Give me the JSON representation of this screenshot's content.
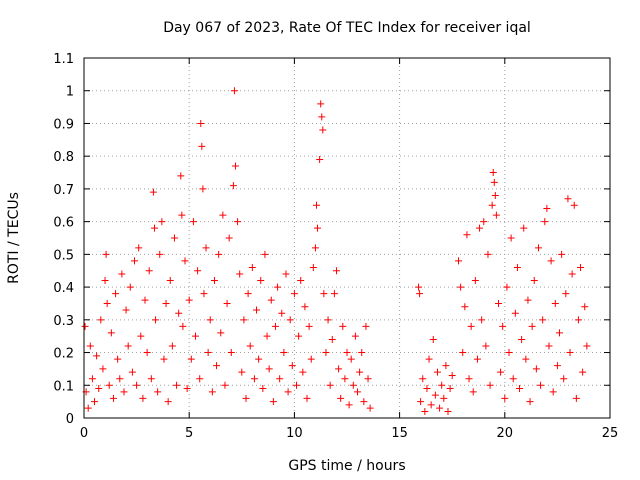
{
  "chart_data": {
    "type": "scatter",
    "title": "Day 067 of 2023, Rate Of TEC Index for receiver iqal",
    "xlabel": "GPS time / hours",
    "ylabel": "ROTI / TECUs",
    "xlim": [
      0,
      25
    ],
    "ylim": [
      0,
      1.1
    ],
    "x_ticks": [
      {
        "value": 0,
        "label": "0"
      },
      {
        "value": 5,
        "label": "5"
      },
      {
        "value": 10,
        "label": "10"
      },
      {
        "value": 15,
        "label": "15"
      },
      {
        "value": 20,
        "label": "20"
      },
      {
        "value": 25,
        "label": "25"
      }
    ],
    "y_ticks": [
      {
        "value": 0,
        "label": "0"
      },
      {
        "value": 0.1,
        "label": "0.1"
      },
      {
        "value": 0.2,
        "label": "0.2"
      },
      {
        "value": 0.3,
        "label": "0.3"
      },
      {
        "value": 0.4,
        "label": "0.4"
      },
      {
        "value": 0.5,
        "label": "0.5"
      },
      {
        "value": 0.6,
        "label": "0.6"
      },
      {
        "value": 0.7,
        "label": "0.7"
      },
      {
        "value": 0.8,
        "label": "0.8"
      },
      {
        "value": 0.9,
        "label": "0.9"
      },
      {
        "value": 1,
        "label": "1"
      },
      {
        "value": 1.1,
        "label": "1.1"
      }
    ],
    "grid": true,
    "marker": "+",
    "color": "#ff0000",
    "series": [
      {
        "points": [
          [
            0.05,
            0.28
          ],
          [
            0.1,
            0.08
          ],
          [
            0.2,
            0.03
          ],
          [
            0.3,
            0.22
          ],
          [
            0.4,
            0.12
          ],
          [
            0.5,
            0.05
          ],
          [
            0.6,
            0.19
          ],
          [
            0.7,
            0.09
          ],
          [
            0.8,
            0.3
          ],
          [
            0.9,
            0.15
          ],
          [
            1.0,
            0.42
          ],
          [
            1.05,
            0.5
          ],
          [
            1.1,
            0.35
          ],
          [
            1.2,
            0.1
          ],
          [
            1.3,
            0.26
          ],
          [
            1.4,
            0.06
          ],
          [
            1.5,
            0.38
          ],
          [
            1.6,
            0.18
          ],
          [
            1.7,
            0.12
          ],
          [
            1.8,
            0.44
          ],
          [
            1.9,
            0.08
          ],
          [
            2.0,
            0.33
          ],
          [
            2.1,
            0.22
          ],
          [
            2.2,
            0.4
          ],
          [
            2.3,
            0.14
          ],
          [
            2.4,
            0.48
          ],
          [
            2.5,
            0.1
          ],
          [
            2.6,
            0.52
          ],
          [
            2.7,
            0.25
          ],
          [
            2.8,
            0.06
          ],
          [
            2.9,
            0.36
          ],
          [
            3.0,
            0.2
          ],
          [
            3.1,
            0.45
          ],
          [
            3.2,
            0.12
          ],
          [
            3.3,
            0.69
          ],
          [
            3.35,
            0.58
          ],
          [
            3.4,
            0.3
          ],
          [
            3.5,
            0.08
          ],
          [
            3.6,
            0.5
          ],
          [
            3.7,
            0.6
          ],
          [
            3.8,
            0.18
          ],
          [
            3.9,
            0.35
          ],
          [
            4.0,
            0.05
          ],
          [
            4.1,
            0.42
          ],
          [
            4.2,
            0.22
          ],
          [
            4.3,
            0.55
          ],
          [
            4.4,
            0.1
          ],
          [
            4.5,
            0.32
          ],
          [
            4.6,
            0.74
          ],
          [
            4.65,
            0.62
          ],
          [
            4.7,
            0.28
          ],
          [
            4.8,
            0.48
          ],
          [
            4.9,
            0.09
          ],
          [
            5.0,
            0.36
          ],
          [
            5.1,
            0.18
          ],
          [
            5.2,
            0.6
          ],
          [
            5.3,
            0.25
          ],
          [
            5.4,
            0.45
          ],
          [
            5.5,
            0.12
          ],
          [
            5.55,
            0.9
          ],
          [
            5.6,
            0.83
          ],
          [
            5.65,
            0.7
          ],
          [
            5.7,
            0.38
          ],
          [
            5.8,
            0.52
          ],
          [
            5.9,
            0.2
          ],
          [
            6.0,
            0.3
          ],
          [
            6.1,
            0.08
          ],
          [
            6.2,
            0.42
          ],
          [
            6.3,
            0.16
          ],
          [
            6.4,
            0.5
          ],
          [
            6.5,
            0.26
          ],
          [
            6.6,
            0.62
          ],
          [
            6.7,
            0.1
          ],
          [
            6.8,
            0.35
          ],
          [
            6.9,
            0.55
          ],
          [
            7.0,
            0.2
          ],
          [
            7.1,
            0.71
          ],
          [
            7.15,
            1.0
          ],
          [
            7.2,
            0.77
          ],
          [
            7.3,
            0.6
          ],
          [
            7.4,
            0.44
          ],
          [
            7.5,
            0.14
          ],
          [
            7.6,
            0.3
          ],
          [
            7.7,
            0.06
          ],
          [
            7.8,
            0.38
          ],
          [
            7.9,
            0.22
          ],
          [
            8.0,
            0.46
          ],
          [
            8.1,
            0.12
          ],
          [
            8.2,
            0.33
          ],
          [
            8.3,
            0.18
          ],
          [
            8.4,
            0.42
          ],
          [
            8.5,
            0.09
          ],
          [
            8.6,
            0.5
          ],
          [
            8.7,
            0.25
          ],
          [
            8.8,
            0.15
          ],
          [
            8.9,
            0.36
          ],
          [
            9.0,
            0.05
          ],
          [
            9.1,
            0.28
          ],
          [
            9.2,
            0.4
          ],
          [
            9.3,
            0.12
          ],
          [
            9.4,
            0.32
          ],
          [
            9.5,
            0.2
          ],
          [
            9.6,
            0.44
          ],
          [
            9.7,
            0.08
          ],
          [
            9.8,
            0.3
          ],
          [
            9.9,
            0.16
          ],
          [
            10.0,
            0.38
          ],
          [
            10.1,
            0.1
          ],
          [
            10.2,
            0.25
          ],
          [
            10.3,
            0.42
          ],
          [
            10.4,
            0.14
          ],
          [
            10.5,
            0.34
          ],
          [
            10.6,
            0.06
          ],
          [
            10.7,
            0.28
          ],
          [
            10.8,
            0.18
          ],
          [
            10.9,
            0.46
          ],
          [
            11.0,
            0.52
          ],
          [
            11.05,
            0.65
          ],
          [
            11.1,
            0.58
          ],
          [
            11.2,
            0.79
          ],
          [
            11.25,
            0.96
          ],
          [
            11.3,
            0.92
          ],
          [
            11.35,
            0.88
          ],
          [
            11.4,
            0.38
          ],
          [
            11.5,
            0.2
          ],
          [
            11.6,
            0.3
          ],
          [
            11.7,
            0.1
          ],
          [
            11.8,
            0.24
          ],
          [
            11.9,
            0.38
          ],
          [
            12.0,
            0.45
          ],
          [
            12.1,
            0.15
          ],
          [
            12.2,
            0.06
          ],
          [
            12.3,
            0.28
          ],
          [
            12.4,
            0.12
          ],
          [
            12.5,
            0.2
          ],
          [
            12.6,
            0.04
          ],
          [
            12.7,
            0.18
          ],
          [
            12.8,
            0.1
          ],
          [
            12.9,
            0.25
          ],
          [
            13.0,
            0.08
          ],
          [
            13.1,
            0.14
          ],
          [
            13.2,
            0.2
          ],
          [
            13.3,
            0.05
          ],
          [
            13.4,
            0.28
          ],
          [
            13.5,
            0.12
          ],
          [
            13.6,
            0.03
          ],
          [
            15.9,
            0.4
          ],
          [
            15.95,
            0.38
          ],
          [
            16.0,
            0.05
          ],
          [
            16.1,
            0.12
          ],
          [
            16.2,
            0.02
          ],
          [
            16.3,
            0.09
          ],
          [
            16.4,
            0.18
          ],
          [
            16.5,
            0.04
          ],
          [
            16.6,
            0.24
          ],
          [
            16.7,
            0.07
          ],
          [
            16.8,
            0.14
          ],
          [
            16.9,
            0.03
          ],
          [
            17.0,
            0.1
          ],
          [
            17.1,
            0.06
          ],
          [
            17.2,
            0.16
          ],
          [
            17.3,
            0.02
          ],
          [
            17.4,
            0.09
          ],
          [
            17.5,
            0.13
          ],
          [
            17.8,
            0.48
          ],
          [
            17.9,
            0.4
          ],
          [
            18.0,
            0.2
          ],
          [
            18.1,
            0.34
          ],
          [
            18.2,
            0.56
          ],
          [
            18.3,
            0.12
          ],
          [
            18.4,
            0.28
          ],
          [
            18.5,
            0.08
          ],
          [
            18.6,
            0.42
          ],
          [
            18.7,
            0.18
          ],
          [
            18.8,
            0.58
          ],
          [
            18.9,
            0.3
          ],
          [
            19.0,
            0.6
          ],
          [
            19.1,
            0.22
          ],
          [
            19.2,
            0.5
          ],
          [
            19.3,
            0.1
          ],
          [
            19.4,
            0.65
          ],
          [
            19.45,
            0.75
          ],
          [
            19.5,
            0.72
          ],
          [
            19.55,
            0.68
          ],
          [
            19.6,
            0.62
          ],
          [
            19.7,
            0.35
          ],
          [
            19.8,
            0.14
          ],
          [
            19.9,
            0.28
          ],
          [
            20.0,
            0.06
          ],
          [
            20.1,
            0.4
          ],
          [
            20.2,
            0.2
          ],
          [
            20.3,
            0.55
          ],
          [
            20.4,
            0.12
          ],
          [
            20.5,
            0.32
          ],
          [
            20.6,
            0.46
          ],
          [
            20.7,
            0.09
          ],
          [
            20.8,
            0.24
          ],
          [
            20.9,
            0.58
          ],
          [
            21.0,
            0.18
          ],
          [
            21.1,
            0.36
          ],
          [
            21.2,
            0.05
          ],
          [
            21.3,
            0.28
          ],
          [
            21.4,
            0.42
          ],
          [
            21.5,
            0.15
          ],
          [
            21.6,
            0.52
          ],
          [
            21.7,
            0.1
          ],
          [
            21.8,
            0.3
          ],
          [
            21.9,
            0.6
          ],
          [
            22.0,
            0.64
          ],
          [
            22.1,
            0.22
          ],
          [
            22.2,
            0.48
          ],
          [
            22.3,
            0.08
          ],
          [
            22.4,
            0.35
          ],
          [
            22.5,
            0.16
          ],
          [
            22.6,
            0.26
          ],
          [
            22.7,
            0.5
          ],
          [
            22.8,
            0.12
          ],
          [
            22.9,
            0.38
          ],
          [
            23.0,
            0.67
          ],
          [
            23.1,
            0.2
          ],
          [
            23.2,
            0.44
          ],
          [
            23.3,
            0.65
          ],
          [
            23.4,
            0.06
          ],
          [
            23.5,
            0.3
          ],
          [
            23.6,
            0.46
          ],
          [
            23.7,
            0.14
          ],
          [
            23.8,
            0.34
          ],
          [
            23.9,
            0.22
          ]
        ]
      }
    ]
  }
}
